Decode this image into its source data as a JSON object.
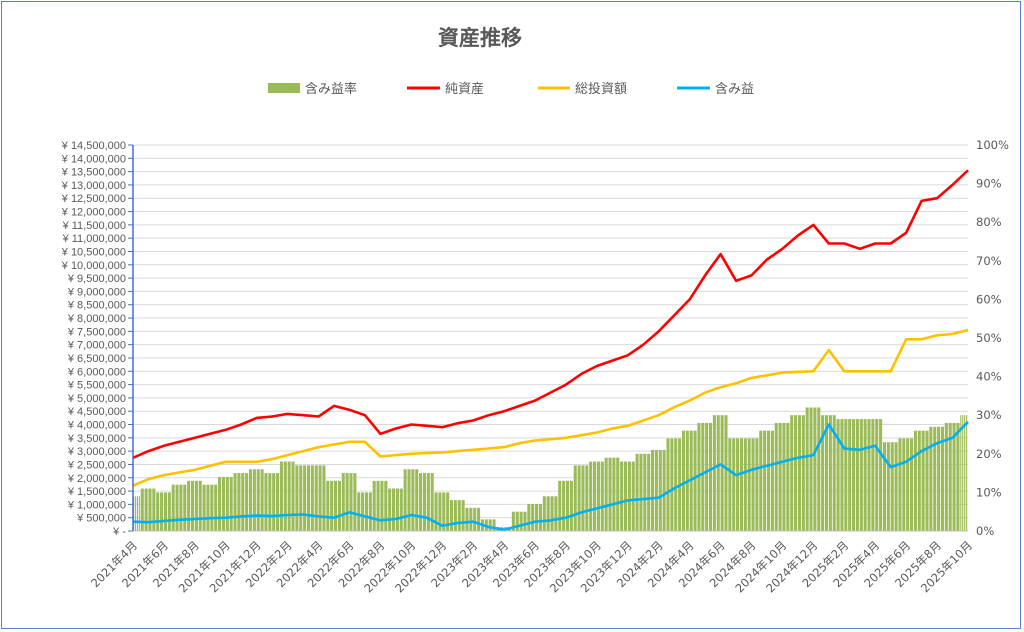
{
  "chart_data": {
    "type": "bar+line",
    "title": "資産推移",
    "legend": [
      "含み益率",
      "純資産",
      "総投資額",
      "含み益"
    ],
    "legend_position": "top",
    "colors": {
      "rate": "#9bbb59",
      "net": "#ff0000",
      "invested": "#ffc000",
      "gain": "#00b0f0",
      "axis": "#4472c4",
      "grid": "#d9d9d9"
    },
    "x_labels": [
      "2021年4月",
      "2021年6月",
      "2021年8月",
      "2021年10月",
      "2021年12月",
      "2022年2月",
      "2022年4月",
      "2022年6月",
      "2022年8月",
      "2022年10月",
      "2022年12月",
      "2023年2月",
      "2023年4月",
      "2023年6月",
      "2023年8月",
      "2023年10月",
      "2023年12月",
      "2024年2月",
      "2024年4月",
      "2024年6月",
      "2024年8月",
      "2024年10月",
      "2024年12月",
      "2025年2月",
      "2025年4月",
      "2025年6月",
      "2025年8月",
      "2025年10月"
    ],
    "x_range_months": [
      0,
      54
    ],
    "y_left": {
      "min": 0,
      "max": 14500000,
      "step": 500000,
      "zero_label": "¥ -",
      "prefix": "¥ "
    },
    "y_right": {
      "min": 0,
      "max": 100,
      "step": 10,
      "suffix": "%"
    },
    "grid": true,
    "series": [
      {
        "name": "含み益率",
        "type": "bar",
        "axis": "right",
        "values": [
          9,
          11,
          10,
          12,
          13,
          12,
          14,
          15,
          16,
          15,
          18,
          17,
          17,
          13,
          15,
          10,
          13,
          11,
          16,
          15,
          10,
          8,
          6,
          3,
          1,
          5,
          7,
          9,
          13,
          17,
          18,
          19,
          18,
          20,
          21,
          24,
          26,
          28,
          30,
          24,
          24,
          26,
          28,
          30,
          32,
          30,
          29,
          29,
          29,
          23,
          24,
          26,
          27,
          28,
          30
        ]
      },
      {
        "name": "純資産",
        "type": "line",
        "axis": "left",
        "values": [
          2750000,
          3000000,
          3200000,
          3350000,
          3500000,
          3650000,
          3800000,
          4000000,
          4250000,
          4300000,
          4400000,
          4350000,
          4300000,
          4700000,
          4550000,
          4350000,
          3650000,
          3850000,
          4000000,
          3950000,
          3900000,
          4050000,
          4150000,
          4350000,
          4500000,
          4700000,
          4900000,
          5200000,
          5500000,
          5900000,
          6200000,
          6400000,
          6600000,
          7000000,
          7500000,
          8100000,
          8700000,
          9600000,
          10400000,
          9400000,
          9600000,
          10200000,
          10600000,
          11100000,
          11500000,
          10800000,
          10800000,
          10600000,
          10800000,
          10800000,
          11200000,
          12400000,
          12500000,
          13000000,
          13550000
        ]
      },
      {
        "name": "総投資額",
        "type": "line",
        "axis": "left",
        "values": [
          1700000,
          1950000,
          2100000,
          2200000,
          2300000,
          2450000,
          2600000,
          2600000,
          2600000,
          2700000,
          2850000,
          3000000,
          3150000,
          3250000,
          3350000,
          3350000,
          2800000,
          2850000,
          2900000,
          2930000,
          2950000,
          3000000,
          3050000,
          3100000,
          3150000,
          3300000,
          3400000,
          3450000,
          3500000,
          3600000,
          3700000,
          3850000,
          3950000,
          4150000,
          4350000,
          4650000,
          4900000,
          5200000,
          5400000,
          5550000,
          5750000,
          5850000,
          5950000,
          5980000,
          6000000,
          6800000,
          6000000,
          6000000,
          6000000,
          6000000,
          7200000,
          7200000,
          7350000,
          7400000,
          7550000
        ]
      },
      {
        "name": "含み益",
        "type": "line",
        "axis": "left",
        "values": [
          350000,
          330000,
          380000,
          420000,
          450000,
          480000,
          500000,
          550000,
          580000,
          560000,
          600000,
          620000,
          550000,
          500000,
          700000,
          550000,
          400000,
          450000,
          600000,
          500000,
          200000,
          300000,
          350000,
          150000,
          50000,
          200000,
          350000,
          400000,
          500000,
          700000,
          850000,
          1000000,
          1150000,
          1200000,
          1250000,
          1600000,
          1900000,
          2200000,
          2500000,
          2100000,
          2300000,
          2450000,
          2600000,
          2750000,
          2850000,
          4000000,
          3100000,
          3050000,
          3200000,
          2400000,
          2600000,
          3000000,
          3300000,
          3500000,
          4100000
        ]
      }
    ]
  }
}
